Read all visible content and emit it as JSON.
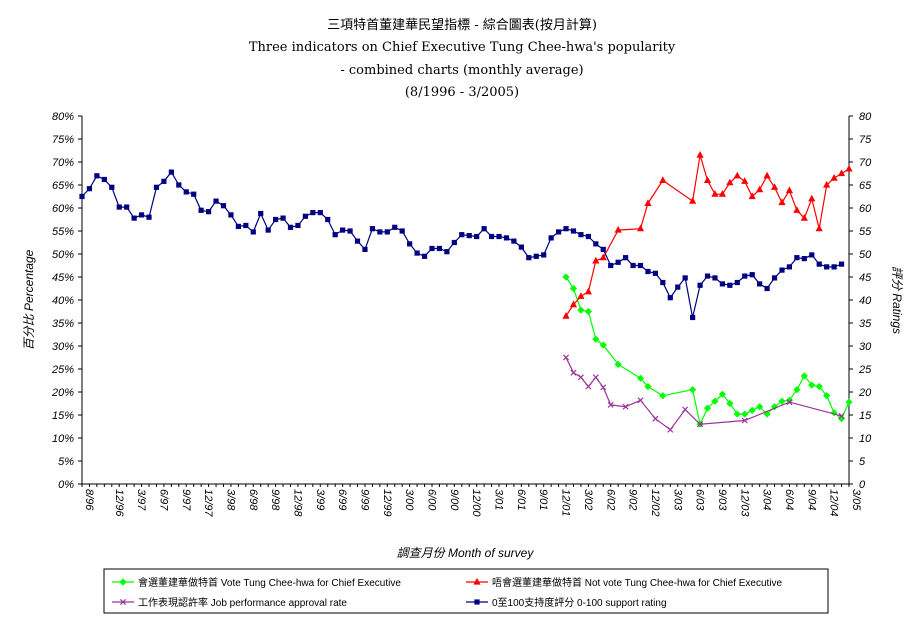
{
  "chart_data": {
    "type": "line",
    "title": "三項特首董建華民望指標 - 綜合圖表(按月計算)",
    "subtitle_lines": [
      "Three indicators on Chief Executive Tung Chee-hwa's popularity",
      "- combined charts (monthly average)",
      "(8/1996 - 3/2005)"
    ],
    "xlabel": "調查月份  Month of survey",
    "ylabel_left": "百分比  Percentage",
    "ylabel_right": "評分  Ratings",
    "y_left_ticks": [
      "0%",
      "5%",
      "10%",
      "15%",
      "20%",
      "25%",
      "30%",
      "35%",
      "40%",
      "45%",
      "50%",
      "55%",
      "60%",
      "65%",
      "70%",
      "75%",
      "80%"
    ],
    "y_right_ticks": [
      "0",
      "5",
      "10",
      "15",
      "20",
      "25",
      "30",
      "35",
      "40",
      "45",
      "50",
      "55",
      "60",
      "65",
      "70",
      "75",
      "80"
    ],
    "ylim": [
      0,
      80
    ],
    "x_range": [
      0,
      103
    ],
    "x_ticks": [
      {
        "x": 0,
        "label": "8/96"
      },
      {
        "x": 4,
        "label": "12/96"
      },
      {
        "x": 7,
        "label": "3/97"
      },
      {
        "x": 10,
        "label": "6/97"
      },
      {
        "x": 13,
        "label": "9/97"
      },
      {
        "x": 16,
        "label": "12/97"
      },
      {
        "x": 19,
        "label": "3/98"
      },
      {
        "x": 22,
        "label": "6/98"
      },
      {
        "x": 25,
        "label": "9/98"
      },
      {
        "x": 28,
        "label": "12/98"
      },
      {
        "x": 31,
        "label": "3/99"
      },
      {
        "x": 34,
        "label": "6/99"
      },
      {
        "x": 37,
        "label": "9/99"
      },
      {
        "x": 40,
        "label": "12/99"
      },
      {
        "x": 43,
        "label": "3/00"
      },
      {
        "x": 46,
        "label": "6/00"
      },
      {
        "x": 49,
        "label": "9/00"
      },
      {
        "x": 52,
        "label": "12/00"
      },
      {
        "x": 55,
        "label": "3/01"
      },
      {
        "x": 58,
        "label": "6/01"
      },
      {
        "x": 61,
        "label": "9/01"
      },
      {
        "x": 64,
        "label": "12/01"
      },
      {
        "x": 67,
        "label": "3/02"
      },
      {
        "x": 70,
        "label": "6/02"
      },
      {
        "x": 73,
        "label": "9/02"
      },
      {
        "x": 76,
        "label": "12/02"
      },
      {
        "x": 79,
        "label": "3/03"
      },
      {
        "x": 82,
        "label": "6/03"
      },
      {
        "x": 85,
        "label": "9/03"
      },
      {
        "x": 88,
        "label": "12/03"
      },
      {
        "x": 91,
        "label": "3/04"
      },
      {
        "x": 94,
        "label": "6/04"
      },
      {
        "x": 97,
        "label": "9/04"
      },
      {
        "x": 100,
        "label": "12/04"
      },
      {
        "x": 103,
        "label": "3/05"
      }
    ],
    "grid": false,
    "legend_position": "bottom",
    "series": [
      {
        "name": "會選董建華做特首 Vote Tung Chee-hwa for Chief Executive",
        "color": "#00ff00",
        "marker": "diamond",
        "points": [
          [
            65,
            45
          ],
          [
            66,
            42.5
          ],
          [
            67,
            37.8
          ],
          [
            68,
            37.5
          ],
          [
            69,
            31.5
          ],
          [
            70,
            30.2
          ],
          [
            72,
            26
          ],
          [
            75,
            23
          ],
          [
            76,
            21.2
          ],
          [
            78,
            19.2
          ],
          [
            82,
            20.5
          ],
          [
            83,
            13
          ],
          [
            84,
            16.5
          ],
          [
            85,
            18
          ],
          [
            86,
            19.5
          ],
          [
            87,
            17.5
          ],
          [
            88,
            15.2
          ],
          [
            89,
            15.2
          ],
          [
            90,
            16
          ],
          [
            91,
            16.8
          ],
          [
            92,
            15.2
          ],
          [
            93,
            16.8
          ],
          [
            94,
            18
          ],
          [
            95,
            18.2
          ],
          [
            96,
            20.5
          ],
          [
            97,
            23.5
          ],
          [
            98,
            21.5
          ],
          [
            99,
            21.2
          ],
          [
            100,
            19.2
          ],
          [
            101,
            15.5
          ],
          [
            102,
            14.2
          ],
          [
            103,
            17.8
          ]
        ]
      },
      {
        "name": "唔會選董建華做特首 Not vote Tung Chee-hwa for Chief Executive",
        "color": "#ff0000",
        "marker": "triangle",
        "points": [
          [
            65,
            36.5
          ],
          [
            66,
            39
          ],
          [
            67,
            40.8
          ],
          [
            68,
            41.8
          ],
          [
            69,
            48.5
          ],
          [
            70,
            49.2
          ],
          [
            72,
            55.2
          ],
          [
            75,
            55.5
          ],
          [
            76,
            61
          ],
          [
            78,
            66
          ],
          [
            82,
            61.5
          ],
          [
            83,
            71.5
          ],
          [
            84,
            66
          ],
          [
            85,
            63
          ],
          [
            86,
            63
          ],
          [
            87,
            65.5
          ],
          [
            88,
            67
          ],
          [
            89,
            65.8
          ],
          [
            90,
            62.5
          ],
          [
            91,
            64
          ],
          [
            92,
            67
          ],
          [
            93,
            64.5
          ],
          [
            94,
            61.2
          ],
          [
            95,
            63.8
          ],
          [
            96,
            59.5
          ],
          [
            97,
            57.8
          ],
          [
            98,
            62
          ],
          [
            99,
            55.5
          ],
          [
            100,
            65
          ],
          [
            101,
            66.5
          ],
          [
            102,
            67.5
          ],
          [
            103,
            68.5
          ]
        ]
      },
      {
        "name": "工作表現認許率 Job performance approval rate",
        "color": "#993399",
        "marker": "x",
        "points": [
          [
            65,
            27.5
          ],
          [
            66,
            24.2
          ],
          [
            67,
            23.2
          ],
          [
            68,
            21.2
          ],
          [
            69,
            23.2
          ],
          [
            70,
            21
          ],
          [
            71,
            17.2
          ],
          [
            73,
            16.8
          ],
          [
            75,
            18.2
          ],
          [
            77,
            14.2
          ],
          [
            79,
            11.8
          ],
          [
            81,
            16.2
          ],
          [
            83,
            13
          ],
          [
            89,
            13.8
          ],
          [
            95,
            17.8
          ],
          [
            102,
            14.8
          ]
        ]
      },
      {
        "name": "0至100支持度評分 0-100 support rating",
        "color": "#000080",
        "marker": "square",
        "points": [
          [
            0,
            62.5
          ],
          [
            1,
            64.2
          ],
          [
            2,
            67
          ],
          [
            3,
            66.2
          ],
          [
            4,
            64.5
          ],
          [
            5,
            60.2
          ],
          [
            6,
            60.2
          ],
          [
            7,
            57.8
          ],
          [
            8,
            58.5
          ],
          [
            9,
            58
          ],
          [
            10,
            64.5
          ],
          [
            11,
            65.8
          ],
          [
            12,
            67.8
          ],
          [
            13,
            65
          ],
          [
            14,
            63.5
          ],
          [
            15,
            63
          ],
          [
            16,
            59.5
          ],
          [
            17,
            59.2
          ],
          [
            18,
            61.5
          ],
          [
            19,
            60.5
          ],
          [
            20,
            58.5
          ],
          [
            21,
            56
          ],
          [
            22,
            56.2
          ],
          [
            23,
            54.8
          ],
          [
            24,
            58.8
          ],
          [
            25,
            55.2
          ],
          [
            26,
            57.5
          ],
          [
            27,
            57.8
          ],
          [
            28,
            55.8
          ],
          [
            29,
            56.2
          ],
          [
            30,
            58.2
          ],
          [
            31,
            59
          ],
          [
            32,
            59
          ],
          [
            33,
            57.5
          ],
          [
            34,
            54.2
          ],
          [
            35,
            55.2
          ],
          [
            36,
            55
          ],
          [
            37,
            52.8
          ],
          [
            38,
            51
          ],
          [
            39,
            55.5
          ],
          [
            40,
            54.8
          ],
          [
            41,
            54.8
          ],
          [
            42,
            55.8
          ],
          [
            43,
            55
          ],
          [
            44,
            52.2
          ],
          [
            45,
            50.2
          ],
          [
            46,
            49.5
          ],
          [
            47,
            51.2
          ],
          [
            48,
            51.2
          ],
          [
            49,
            50.5
          ],
          [
            50,
            52.5
          ],
          [
            51,
            54.2
          ],
          [
            52,
            54
          ],
          [
            53,
            53.8
          ],
          [
            54,
            55.5
          ],
          [
            55,
            53.8
          ],
          [
            56,
            53.8
          ],
          [
            57,
            53.5
          ],
          [
            58,
            52.8
          ],
          [
            59,
            51.5
          ],
          [
            60,
            49.2
          ],
          [
            61,
            49.5
          ],
          [
            62,
            49.8
          ],
          [
            63,
            53.5
          ],
          [
            64,
            54.8
          ],
          [
            65,
            55.5
          ],
          [
            66,
            55
          ],
          [
            67,
            54.2
          ],
          [
            68,
            53.8
          ],
          [
            69,
            52.2
          ],
          [
            70,
            51
          ],
          [
            71,
            47.5
          ],
          [
            72,
            48.2
          ],
          [
            73,
            49.2
          ],
          [
            74,
            47.5
          ],
          [
            75,
            47.5
          ],
          [
            76,
            46.2
          ],
          [
            77,
            45.8
          ],
          [
            78,
            43.8
          ],
          [
            79,
            40.5
          ],
          [
            80,
            42.8
          ],
          [
            81,
            44.8
          ],
          [
            82,
            36.2
          ],
          [
            83,
            43.2
          ],
          [
            84,
            45.2
          ],
          [
            85,
            44.8
          ],
          [
            86,
            43.5
          ],
          [
            87,
            43.2
          ],
          [
            88,
            43.8
          ],
          [
            89,
            45.2
          ],
          [
            90,
            45.5
          ],
          [
            91,
            43.5
          ],
          [
            92,
            42.5
          ],
          [
            93,
            44.8
          ],
          [
            94,
            46.5
          ],
          [
            95,
            47.2
          ],
          [
            96,
            49.2
          ],
          [
            97,
            49
          ],
          [
            98,
            49.8
          ],
          [
            99,
            47.8
          ],
          [
            100,
            47.2
          ],
          [
            101,
            47.2
          ],
          [
            102,
            47.8
          ]
        ]
      }
    ]
  }
}
